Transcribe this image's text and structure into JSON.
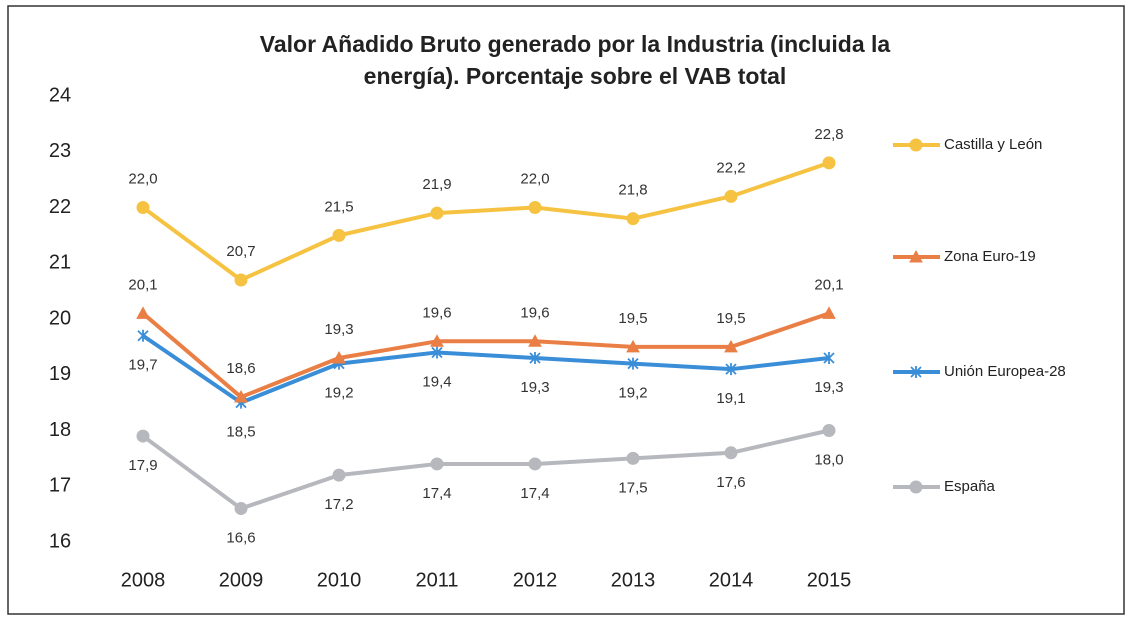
{
  "chart_data": {
    "type": "line",
    "title": [
      "Valor Añadido Bruto generado por la Industria (incluida la",
      "energía). Porcentaje sobre el VAB total"
    ],
    "categories": [
      "2008",
      "2009",
      "2010",
      "2011",
      "2012",
      "2013",
      "2014",
      "2015"
    ],
    "ylim": [
      16,
      24
    ],
    "yticks": [
      16,
      17,
      18,
      19,
      20,
      21,
      22,
      23,
      24
    ],
    "grid": false,
    "legend": "right",
    "series": [
      {
        "name": "Castilla y León",
        "color": "#f6c242",
        "marker": "circle",
        "label_side": "above",
        "values": [
          22.0,
          20.7,
          21.5,
          21.9,
          22.0,
          21.8,
          22.2,
          22.8
        ],
        "value_labels": [
          "22,0",
          "20,7",
          "21,5",
          "21,9",
          "22,0",
          "21,8",
          "22,2",
          "22,8"
        ]
      },
      {
        "name": "Zona Euro-19",
        "color": "#ea7f45",
        "marker": "triangle",
        "label_side": "above",
        "values": [
          20.1,
          18.6,
          19.3,
          19.6,
          19.6,
          19.5,
          19.5,
          20.1
        ],
        "value_labels": [
          "20,1",
          "18,6",
          "19,3",
          "19,6",
          "19,6",
          "19,5",
          "19,5",
          "20,1"
        ]
      },
      {
        "name": "Unión Europea-28",
        "color": "#3a8ed8",
        "marker": "star",
        "label_side": "below",
        "values": [
          19.7,
          18.5,
          19.2,
          19.4,
          19.3,
          19.2,
          19.1,
          19.3
        ],
        "value_labels": [
          "19,7",
          "18,5",
          "19,2",
          "19,4",
          "19,3",
          "19,2",
          "19,1",
          "19,3"
        ]
      },
      {
        "name": "España",
        "color": "#b7b8bd",
        "marker": "circle",
        "label_side": "below",
        "values": [
          17.9,
          16.6,
          17.2,
          17.4,
          17.4,
          17.5,
          17.6,
          18.0
        ],
        "value_labels": [
          "17,9",
          "16,6",
          "17,2",
          "17,4",
          "17,4",
          "17,5",
          "17,6",
          "18,0"
        ]
      }
    ]
  }
}
